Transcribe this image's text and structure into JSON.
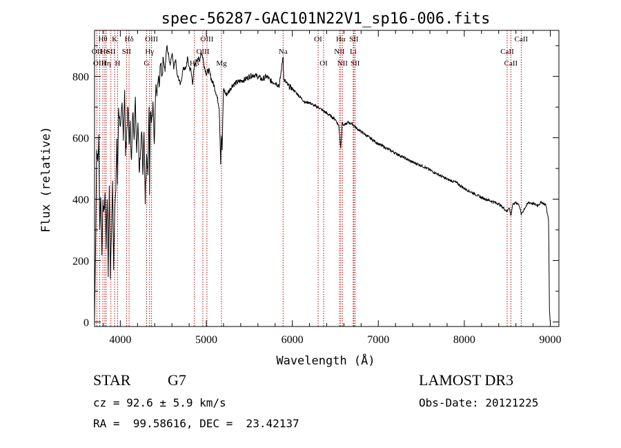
{
  "chart_data": {
    "type": "line",
    "title": "spec-56287-GAC101N22V1_sp16-006.fits",
    "xlabel": "Wavelength (Å)",
    "ylabel": "Flux (relative)",
    "xlim": [
      3700,
      9100
    ],
    "ylim": [
      -15,
      950
    ],
    "x_ticks": [
      4000,
      5000,
      6000,
      7000,
      8000,
      9000
    ],
    "y_ticks": [
      0,
      200,
      400,
      600,
      800
    ],
    "x_tick_labels": [
      "4000",
      "5000",
      "6000",
      "7000",
      "8000",
      "9000"
    ],
    "y_tick_labels": [
      "0",
      "200",
      "400",
      "600",
      "800"
    ],
    "grid": false,
    "series": [
      {
        "x": [
          3700,
          3712,
          3725,
          3738,
          3750,
          3760,
          3772,
          3785,
          3798,
          3810,
          3822,
          3835,
          3848,
          3860,
          3872,
          3885,
          3898,
          3910,
          3922,
          3935,
          3948,
          3960,
          3968,
          3980,
          3992,
          4005,
          4020,
          4035,
          4050,
          4060,
          4075,
          4090,
          4102,
          4115,
          4130,
          4145,
          4160,
          4175,
          4190,
          4205,
          4220,
          4235,
          4250,
          4262,
          4275,
          4290,
          4305,
          4320,
          4335,
          4340,
          4350,
          4365,
          4380,
          4395,
          4410,
          4425,
          4440,
          4455,
          4470,
          4485,
          4500,
          4520,
          4540,
          4560,
          4580,
          4600,
          4620,
          4640,
          4660,
          4680,
          4700,
          4720,
          4740,
          4760,
          4780,
          4800,
          4820,
          4840,
          4861,
          4880,
          4900,
          4920,
          4940,
          4960,
          4980,
          5000,
          5030,
          5060,
          5090,
          5120,
          5150,
          5167,
          5175,
          5184,
          5200,
          5230,
          5260,
          5300,
          5350,
          5400,
          5450,
          5500,
          5550,
          5600,
          5650,
          5700,
          5750,
          5800,
          5850,
          5893,
          5900,
          5950,
          6000,
          6050,
          6100,
          6150,
          6200,
          6250,
          6300,
          6350,
          6400,
          6450,
          6500,
          6540,
          6563,
          6580,
          6600,
          6650,
          6700,
          6750,
          6800,
          6850,
          6900,
          6950,
          7000,
          7100,
          7200,
          7300,
          7400,
          7500,
          7600,
          7700,
          7800,
          7900,
          8000,
          8100,
          8200,
          8300,
          8400,
          8498,
          8520,
          8542,
          8560,
          8600,
          8640,
          8662,
          8700,
          8750,
          8800,
          8850,
          8900,
          8950,
          8980,
          8990,
          9000
        ],
        "values": [
          0,
          250,
          560,
          520,
          600,
          300,
          420,
          230,
          380,
          360,
          420,
          250,
          410,
          160,
          450,
          150,
          300,
          450,
          180,
          380,
          420,
          600,
          450,
          700,
          660,
          640,
          700,
          610,
          760,
          550,
          620,
          700,
          580,
          640,
          520,
          690,
          610,
          720,
          560,
          660,
          500,
          560,
          640,
          470,
          610,
          400,
          560,
          480,
          700,
          430,
          680,
          640,
          710,
          560,
          760,
          740,
          790,
          780,
          850,
          800,
          860,
          820,
          900,
          870,
          840,
          880,
          830,
          860,
          810,
          790,
          770,
          810,
          830,
          820,
          860,
          830,
          820,
          780,
          830,
          850,
          860,
          850,
          880,
          860,
          830,
          810,
          820,
          790,
          770,
          740,
          700,
          520,
          610,
          560,
          760,
          740,
          750,
          770,
          780,
          785,
          790,
          800,
          805,
          800,
          790,
          800,
          785,
          780,
          770,
          870,
          790,
          770,
          760,
          745,
          730,
          715,
          715,
          705,
          700,
          690,
          680,
          670,
          660,
          640,
          565,
          650,
          640,
          650,
          645,
          630,
          620,
          610,
          600,
          590,
          580,
          565,
          550,
          535,
          520,
          510,
          495,
          480,
          465,
          455,
          435,
          420,
          405,
          395,
          385,
          360,
          375,
          345,
          380,
          390,
          380,
          350,
          370,
          390,
          385,
          380,
          390,
          380,
          330,
          40,
          0
        ]
      }
    ],
    "line_markers": [
      {
        "label": "Hθ",
        "x": 3797,
        "row": 0
      },
      {
        "label": "OII",
        "x": 3727,
        "row": 1
      },
      {
        "label": "OIII",
        "x": 3760,
        "row": 2
      },
      {
        "label": "He",
        "x": 3819,
        "row": 1
      },
      {
        "label": "Hη",
        "x": 3835,
        "row": 2
      },
      {
        "label": "K",
        "x": 3934,
        "row": 0
      },
      {
        "label": "SII",
        "x": 3890,
        "row": 1
      },
      {
        "label": "H",
        "x": 3969,
        "row": 2
      },
      {
        "label": "Hδ",
        "x": 4102,
        "row": 0
      },
      {
        "label": "SII",
        "x": 4072,
        "row": 1
      },
      {
        "label": "OIII",
        "x": 4363,
        "row": 0
      },
      {
        "label": "Hγ",
        "x": 4340,
        "row": 1
      },
      {
        "label": "G",
        "x": 4305,
        "row": 2
      },
      {
        "label": "Hβ",
        "x": 4861,
        "row": 2
      },
      {
        "label": "OIII",
        "x": 4959,
        "row": 1
      },
      {
        "label": "OIII",
        "x": 5007,
        "row": 0
      },
      {
        "label": "Mg",
        "x": 5176,
        "row": 2
      },
      {
        "label": "Na",
        "x": 5893,
        "row": 1
      },
      {
        "label": "OI",
        "x": 6300,
        "row": 0
      },
      {
        "label": "OI",
        "x": 6364,
        "row": 2
      },
      {
        "label": "Hα",
        "x": 6563,
        "row": 0
      },
      {
        "label": "NII",
        "x": 6548,
        "row": 1
      },
      {
        "label": "NII",
        "x": 6583,
        "row": 2
      },
      {
        "label": "SII",
        "x": 6716,
        "row": 0
      },
      {
        "label": "Li",
        "x": 6708,
        "row": 1
      },
      {
        "label": "SII",
        "x": 6731,
        "row": 2
      },
      {
        "label": "CaII",
        "x": 8662,
        "row": 0
      },
      {
        "label": "CaII",
        "x": 8498,
        "row": 1
      },
      {
        "label": "CaII",
        "x": 8542,
        "row": 2
      }
    ]
  },
  "info": {
    "object_class": "STAR",
    "subclass": "G7",
    "redshift": "cz = 92.6 ± 5.9 km/s",
    "coords": "RA =  99.58616, DEC =  23.42137",
    "survey": "LAMOST DR3",
    "obs_date": "Obs-Date: 20121225"
  }
}
